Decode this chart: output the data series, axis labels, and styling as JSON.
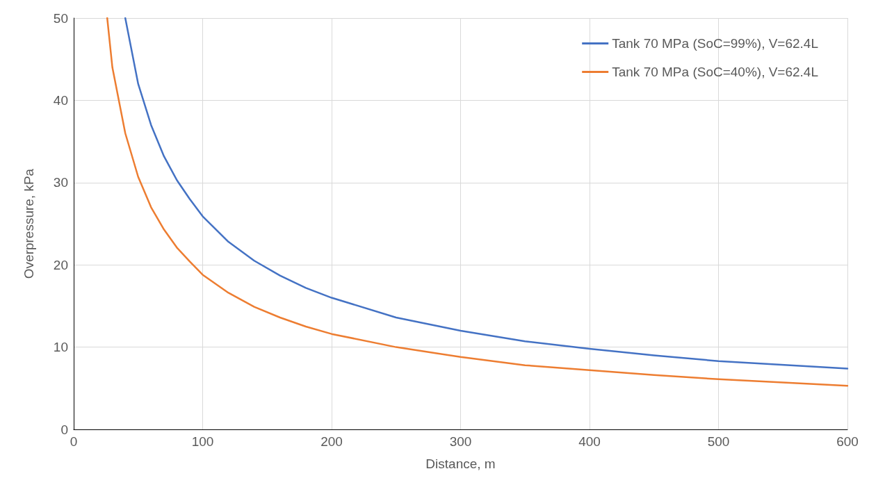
{
  "chart_data": {
    "type": "line",
    "xlabel": "Distance, m",
    "ylabel": "Overpressure, kPa",
    "xlim": [
      0,
      600
    ],
    "xticks": [
      0,
      100,
      200,
      300,
      400,
      500,
      600
    ],
    "ylim": [
      0,
      50
    ],
    "yticks": [
      0,
      10,
      20,
      30,
      40,
      50
    ],
    "grid": true,
    "legend": "top right",
    "marker": "none",
    "line_style": "solid",
    "series": [
      {
        "name": "Tank 70 MPa (SoC=99%), V=62.4L",
        "color": "#4472c4",
        "x": [
          40,
          50,
          60,
          70,
          80,
          90,
          100,
          120,
          140,
          160,
          180,
          200,
          250,
          300,
          350,
          400,
          450,
          500,
          600
        ],
        "values": [
          50,
          42,
          37,
          33.2,
          30.3,
          28,
          25.9,
          22.8,
          20.5,
          18.7,
          17.2,
          16,
          13.6,
          12,
          10.7,
          9.8,
          9,
          8.3,
          7.4
        ]
      },
      {
        "name": "Tank 70 MPa (SoC=40%), V=62.4L",
        "color": "#ed7d31",
        "x": [
          26,
          30,
          40,
          50,
          60,
          70,
          80,
          90,
          100,
          120,
          140,
          160,
          180,
          200,
          250,
          300,
          350,
          400,
          450,
          500,
          600
        ],
        "values": [
          50,
          44,
          36,
          30.7,
          27,
          24.3,
          22.1,
          20.4,
          18.8,
          16.6,
          14.9,
          13.6,
          12.5,
          11.6,
          10,
          8.8,
          7.8,
          7.2,
          6.6,
          6.1,
          5.3
        ]
      }
    ]
  }
}
